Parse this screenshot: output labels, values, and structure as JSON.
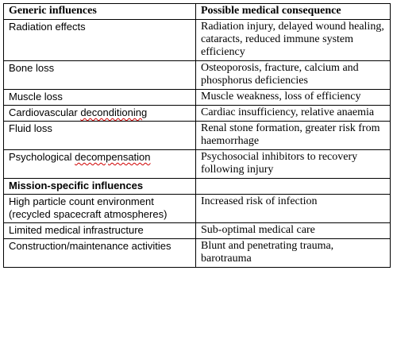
{
  "table": {
    "header": {
      "col1": "Generic influences",
      "col2": "Possible medical consequence"
    },
    "generic_rows": [
      {
        "influence": "Radiation effects",
        "consequence": "Radiation injury, delayed wound healing, cataracts, reduced immune system efficiency"
      },
      {
        "influence": "Bone loss",
        "consequence": "Osteoporosis, fracture, calcium and phosphorus deficiencies"
      },
      {
        "influence": "Muscle loss",
        "consequence": "Muscle weakness, loss of efficiency"
      },
      {
        "influence_prefix": "Cardiovascular ",
        "influence_marked": "deconditioning",
        "consequence": "Cardiac insufficiency, relative anaemia"
      },
      {
        "influence": "Fluid loss",
        "consequence": "Renal stone formation, greater risk from haemorrhage"
      },
      {
        "influence_prefix": "Psychological ",
        "influence_marked": "decompensation",
        "consequence": "Psychosocial inhibitors to recovery following injury"
      }
    ],
    "section2_header": "Mission-specific influences",
    "mission_rows": [
      {
        "influence": "High particle count environment (recycled spacecraft atmospheres)",
        "consequence": "Increased risk of infection"
      },
      {
        "influence": "Limited medical infrastructure",
        "consequence": "Sub-optimal medical care"
      },
      {
        "influence": "Construction/maintenance activities",
        "consequence": "Blunt and penetrating trauma, barotrauma"
      }
    ]
  },
  "colors": {
    "border": "#000000",
    "spellcheck_underline": "#d00000"
  }
}
